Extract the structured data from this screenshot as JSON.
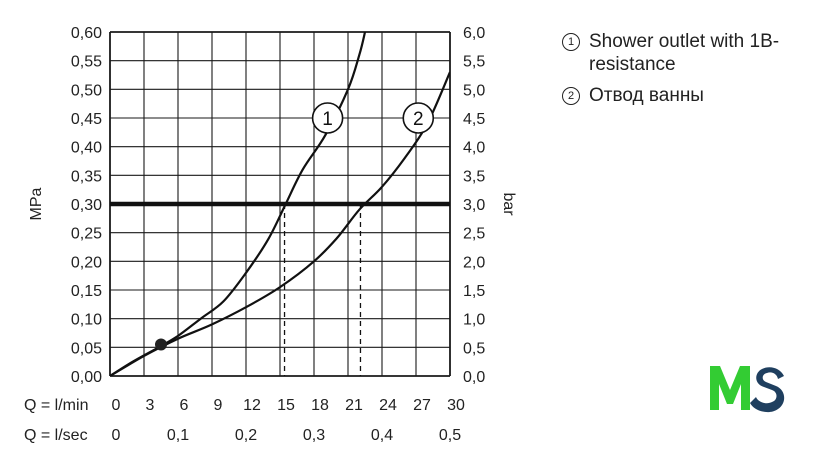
{
  "chart_data": {
    "type": "line",
    "y_left": {
      "unit": "MPa",
      "ticks": [
        "0,00",
        "0,05",
        "0,10",
        "0,15",
        "0,20",
        "0,25",
        "0,30",
        "0,35",
        "0,40",
        "0,45",
        "0,50",
        "0,55",
        "0,60"
      ],
      "range": [
        0,
        0.6
      ]
    },
    "y_right": {
      "unit": "bar",
      "ticks": [
        "0,0",
        "0,5",
        "1,0",
        "1,5",
        "2,0",
        "2,5",
        "3,0",
        "3,5",
        "4,0",
        "4,5",
        "5,0",
        "5,5",
        "6,0"
      ],
      "range": [
        0,
        6
      ]
    },
    "x_primary": {
      "label": "Q = l/min",
      "ticks": [
        "0",
        "3",
        "6",
        "9",
        "12",
        "15",
        "18",
        "21",
        "24",
        "27",
        "30"
      ],
      "range": [
        0,
        30
      ]
    },
    "x_secondary": {
      "label": "Q = l/sec",
      "ticks": [
        "0",
        "0,1",
        "0,2",
        "0,3",
        "0,4",
        "0,5"
      ]
    },
    "reference_line": {
      "y": 0.3
    },
    "series": [
      {
        "name": "1",
        "x": [
          0,
          2,
          4.3,
          6,
          8,
          10,
          12,
          14,
          15.5,
          17,
          19,
          21,
          22,
          22.5
        ],
        "y": [
          0,
          0.025,
          0.05,
          0.07,
          0.1,
          0.13,
          0.18,
          0.24,
          0.3,
          0.36,
          0.42,
          0.5,
          0.56,
          0.6
        ],
        "marker_label": "1",
        "marker_at": {
          "x": 19.2,
          "y": 0.45
        }
      },
      {
        "name": "2",
        "x": [
          0,
          3,
          6,
          9,
          12,
          15,
          18,
          20,
          22,
          24,
          26,
          28,
          30
        ],
        "y": [
          0,
          0.035,
          0.065,
          0.09,
          0.12,
          0.155,
          0.2,
          0.24,
          0.29,
          0.33,
          0.38,
          0.44,
          0.53
        ],
        "marker_label": "2",
        "marker_at": {
          "x": 27.2,
          "y": 0.45
        }
      }
    ],
    "intersections": [
      {
        "x": 15.4,
        "y": 0.3
      },
      {
        "x": 22.1,
        "y": 0.3
      }
    ],
    "point_marker": {
      "x": 4.5,
      "y": 0.055
    },
    "grid": true
  },
  "legend": {
    "items": [
      {
        "marker": "1",
        "text": "Shower outlet with 1B-resistance"
      },
      {
        "marker": "2",
        "text": "Отвод ванны"
      }
    ]
  },
  "logo": {
    "text_left": "M",
    "text_right": "S",
    "color_left": "#33cc33",
    "color_right": "#1f3f5f"
  }
}
